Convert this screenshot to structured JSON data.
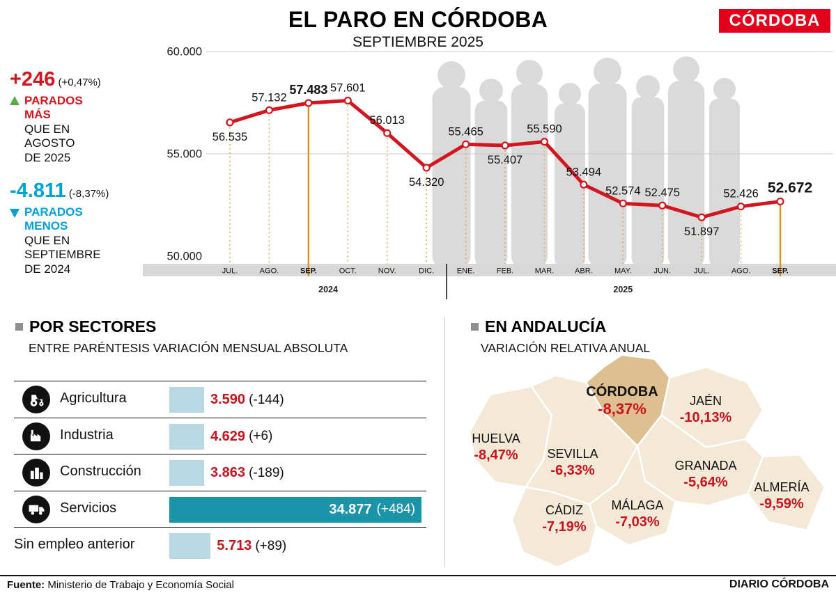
{
  "meta": {
    "brand": "CÓRDOBA"
  },
  "header": {
    "title": "EL PARO EN CÓRDOBA",
    "subtitle": "SEPTIEMBRE 2025"
  },
  "summary": {
    "monthly": {
      "value": "+246",
      "pct": "(+0,47%)",
      "label": "PARADOS\nMÁS",
      "sub": "QUE EN\nAGOSTO\nDE 2025"
    },
    "yearly": {
      "value": "-4.811",
      "pct": "(-8,37%)",
      "label": "PARADOS\nMENOS",
      "sub": "QUE EN\nSEPTIEMBRE\nDE 2024"
    }
  },
  "chart_data": {
    "type": "line",
    "title": "EL PARO EN CÓRDOBA — SEPTIEMBRE 2025",
    "categories": [
      "JUL.",
      "AGO.",
      "SEP.",
      "OCT.",
      "NOV.",
      "DIC.",
      "ENE.",
      "FEB.",
      "MAR.",
      "ABR.",
      "MAY.",
      "JUN.",
      "JUL.",
      "AGO.",
      "SEP."
    ],
    "values": [
      56535,
      57132,
      57483,
      57601,
      56013,
      54320,
      55465,
      55407,
      55590,
      53494,
      52574,
      52475,
      51897,
      52426,
      52672
    ],
    "labels": [
      "56.535",
      "57.132",
      "57.483",
      "57.601",
      "56.013",
      "54.320",
      "55.465",
      "55.407",
      "55.590",
      "53.494",
      "52.574",
      "52.475",
      "51.897",
      "52.426",
      "52.672"
    ],
    "label_pos": [
      "below",
      "above",
      "above",
      "above",
      "above",
      "below",
      "above",
      "below",
      "above",
      "above",
      "above",
      "above",
      "below",
      "above",
      "above"
    ],
    "emphasis": [
      2,
      14
    ],
    "year_groups": [
      {
        "label": "2024",
        "from": 0,
        "to": 5
      },
      {
        "label": "2025",
        "from": 6,
        "to": 14
      }
    ],
    "y_ticks": [
      "60.000",
      "55.000",
      "50.000"
    ],
    "y_tick_values": [
      60000,
      55000,
      50000
    ],
    "ylim": [
      50000,
      60000
    ],
    "grid": true,
    "line_color": "#d2151e",
    "guide_color": "#e0a146",
    "emphasis_guide_color": "#df8f1f"
  },
  "sectors": {
    "title": "POR SECTORES",
    "subtitle": "ENTRE PARÉNTESIS VARIACIÓN MENSUAL ABSOLUTA",
    "bar_color_light": "#b9d8e4",
    "bar_color_highlight": "#1b93a8",
    "rows": [
      {
        "icon": "tractor-icon",
        "label": "Agricultura",
        "value": "3.590",
        "value_num": 3590,
        "delta": "(-144)",
        "highlight": false
      },
      {
        "icon": "factory-icon",
        "label": "Industria",
        "value": "4.629",
        "value_num": 4629,
        "delta": "(+6)",
        "highlight": false
      },
      {
        "icon": "buildings-icon",
        "label": "Construcción",
        "value": "3.863",
        "value_num": 3863,
        "delta": "(-189)",
        "highlight": false
      },
      {
        "icon": "truck-icon",
        "label": "Servicios",
        "value": "34.877",
        "value_num": 34877,
        "delta": "(+484)",
        "highlight": true
      },
      {
        "icon": null,
        "label": "Sin empleo anterior",
        "value": "5.713",
        "value_num": 5713,
        "delta": "(+89)",
        "highlight": false
      }
    ]
  },
  "andalucia": {
    "title": "EN ANDALUCÍA",
    "subtitle": "VARIACIÓN RELATIVA ANUAL",
    "provinces": [
      {
        "name": "CÓRDOBA",
        "pct": "-8,37%",
        "emphasis": true
      },
      {
        "name": "JAÉN",
        "pct": "-10,13%",
        "emphasis": false
      },
      {
        "name": "HUELVA",
        "pct": "-8,47%",
        "emphasis": false
      },
      {
        "name": "SEVILLA",
        "pct": "-6,33%",
        "emphasis": false
      },
      {
        "name": "GRANADA",
        "pct": "-5,64%",
        "emphasis": false
      },
      {
        "name": "ALMERÍA",
        "pct": "-9,59%",
        "emphasis": false
      },
      {
        "name": "CÁDIZ",
        "pct": "-7,19%",
        "emphasis": false
      },
      {
        "name": "MÁLAGA",
        "pct": "-7,03%",
        "emphasis": false
      }
    ]
  },
  "footer": {
    "source_label": "Fuente:",
    "source": " Ministerio de Trabajo y Economía Social",
    "credit": "DIARIO CÓRDOBA"
  }
}
